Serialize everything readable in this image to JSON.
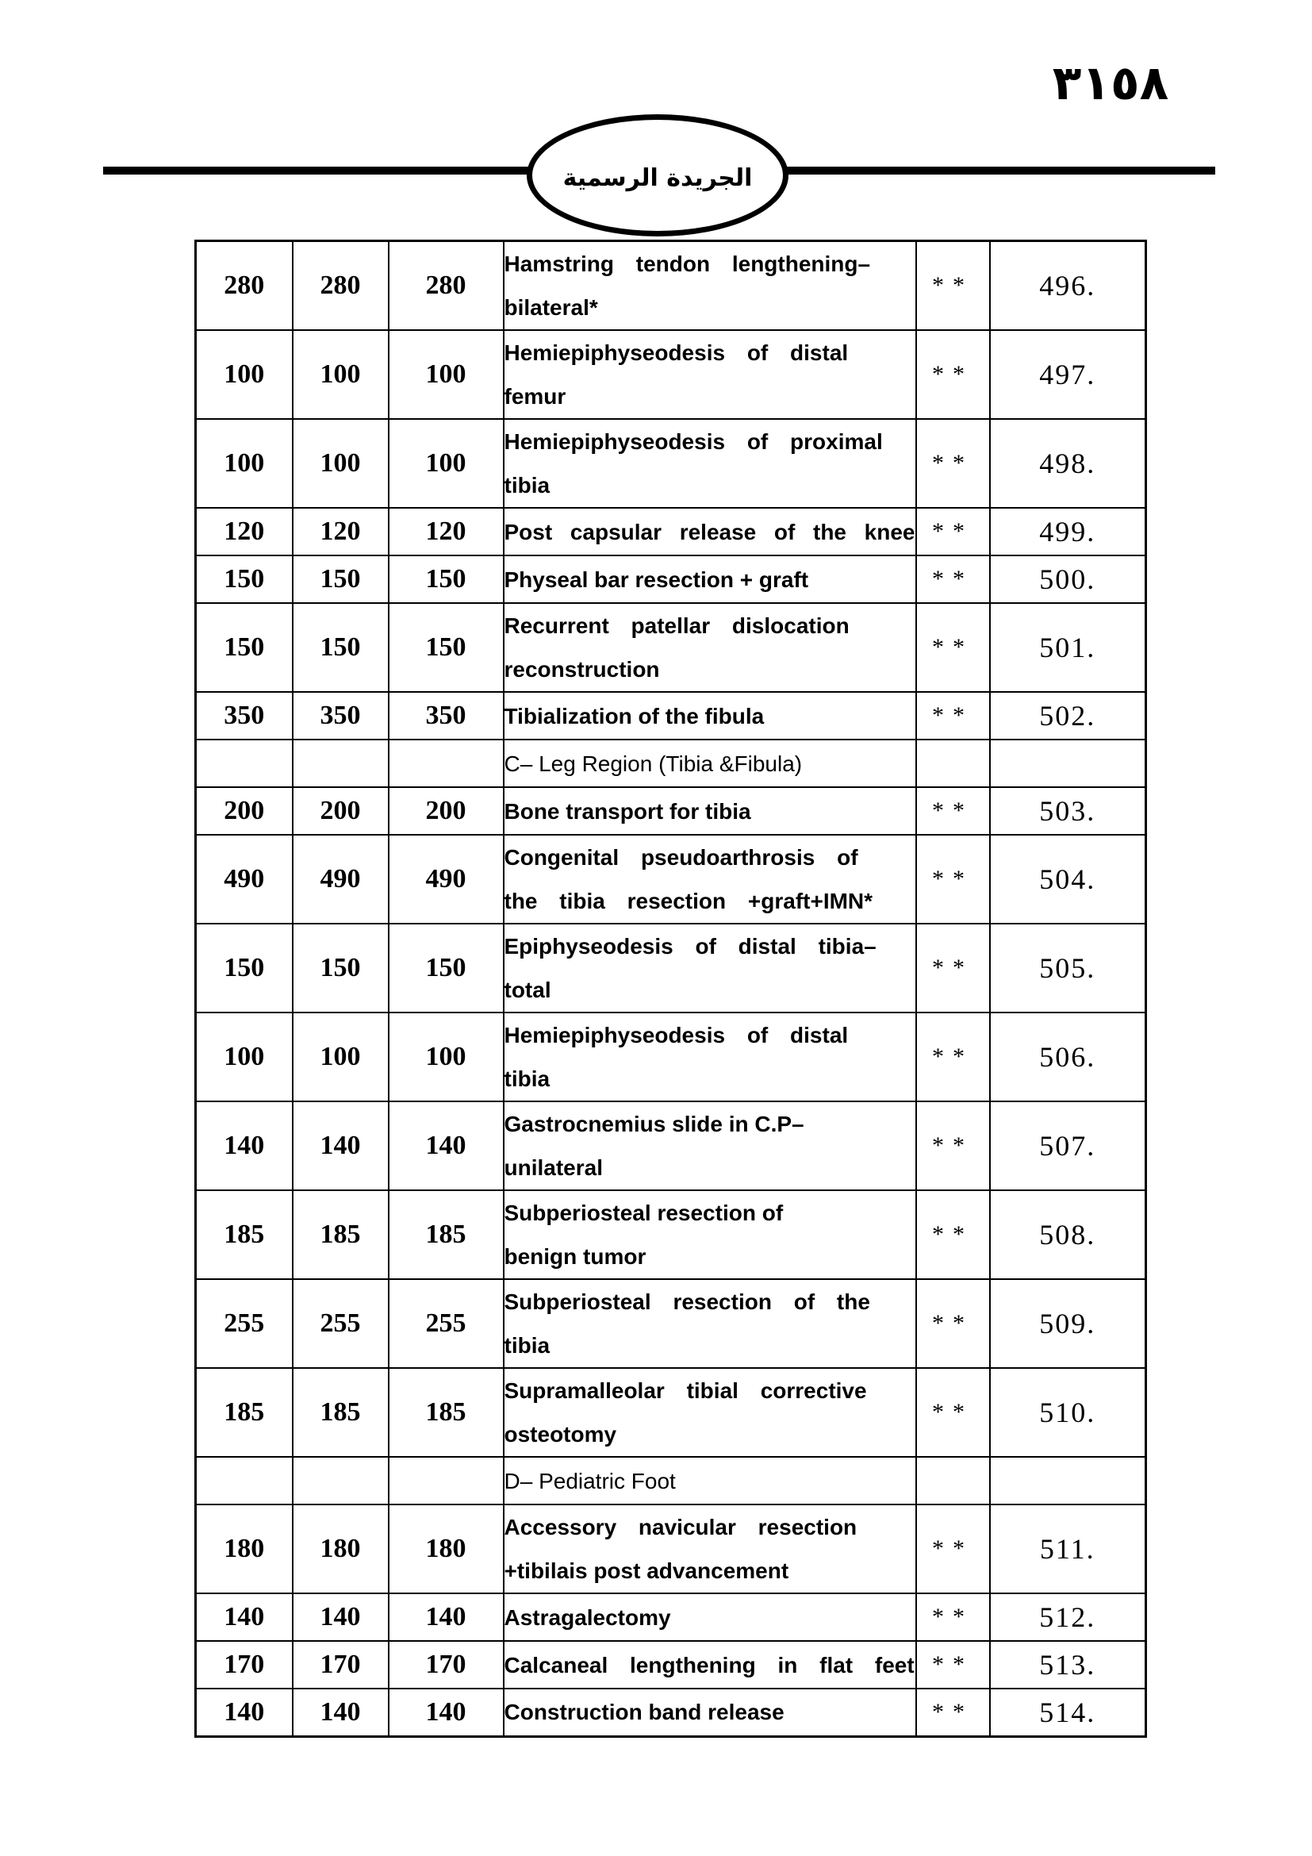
{
  "header": {
    "page_number": "٣١٥٨",
    "gazette_title": "الجريدة الرسمية"
  },
  "colors": {
    "ink": "#000000",
    "paper": "#ffffff"
  },
  "table": {
    "rows": [
      {
        "type": "item",
        "prices": [
          "280",
          "280",
          "280"
        ],
        "desc_lines": [
          "Hamstring tendon lengthening–",
          "bilateral*"
        ],
        "stars": "**",
        "ref": "496."
      },
      {
        "type": "item",
        "prices": [
          "100",
          "100",
          "100"
        ],
        "desc_lines": [
          "Hemiepiphyseodesis of distal",
          "femur"
        ],
        "stars": "**",
        "ref": "497."
      },
      {
        "type": "item",
        "prices": [
          "100",
          "100",
          "100"
        ],
        "desc_lines": [
          "Hemiepiphyseodesis of proximal",
          "tibia"
        ],
        "stars": "**",
        "ref": "498."
      },
      {
        "type": "item",
        "prices": [
          "120",
          "120",
          "120"
        ],
        "desc_lines": [
          "Post capsular release of the knee"
        ],
        "stars": "**",
        "ref": "499."
      },
      {
        "type": "item",
        "prices": [
          "150",
          "150",
          "150"
        ],
        "desc_lines": [
          "Physeal bar resection + graft"
        ],
        "stars": "**",
        "ref": "500."
      },
      {
        "type": "item",
        "prices": [
          "150",
          "150",
          "150"
        ],
        "desc_lines": [
          "Recurrent patellar dislocation",
          "reconstruction"
        ],
        "stars": "**",
        "ref": "501."
      },
      {
        "type": "item",
        "prices": [
          "350",
          "350",
          "350"
        ],
        "desc_lines": [
          "Tibialization of the fibula"
        ],
        "stars": "**",
        "ref": "502."
      },
      {
        "type": "section",
        "prices": [
          "",
          "",
          ""
        ],
        "desc_lines": [
          "C– Leg Region (Tibia &Fibula)"
        ],
        "stars": "",
        "ref": ""
      },
      {
        "type": "item",
        "prices": [
          "200",
          "200",
          "200"
        ],
        "desc_lines": [
          "Bone transport for tibia"
        ],
        "stars": "**",
        "ref": "503."
      },
      {
        "type": "item",
        "prices": [
          "490",
          "490",
          "490"
        ],
        "desc_lines": [
          "Congenital pseudoarthrosis of",
          "the tibia resection +graft+IMN*"
        ],
        "stars": "**",
        "ref": "504."
      },
      {
        "type": "item",
        "prices": [
          "150",
          "150",
          "150"
        ],
        "desc_lines": [
          "Epiphyseodesis of distal tibia–",
          "total"
        ],
        "stars": "**",
        "ref": "505."
      },
      {
        "type": "item",
        "prices": [
          "100",
          "100",
          "100"
        ],
        "desc_lines": [
          "Hemiepiphyseodesis of distal",
          "tibia"
        ],
        "stars": "**",
        "ref": "506."
      },
      {
        "type": "item",
        "prices": [
          "140",
          "140",
          "140"
        ],
        "desc_lines": [
          "Gastrocnemius slide in C.P–",
          "unilateral"
        ],
        "stars": "**",
        "ref": "507."
      },
      {
        "type": "item",
        "prices": [
          "185",
          "185",
          "185"
        ],
        "desc_lines": [
          "Subperiosteal resection of",
          "benign tumor"
        ],
        "stars": "**",
        "ref": "508."
      },
      {
        "type": "item",
        "prices": [
          "255",
          "255",
          "255"
        ],
        "desc_lines": [
          "Subperiosteal resection of the",
          "tibia"
        ],
        "stars": "**",
        "ref": "509."
      },
      {
        "type": "item",
        "prices": [
          "185",
          "185",
          "185"
        ],
        "desc_lines": [
          "Supramalleolar tibial corrective",
          "osteotomy"
        ],
        "stars": "**",
        "ref": "510."
      },
      {
        "type": "section",
        "prices": [
          "",
          "",
          ""
        ],
        "desc_lines": [
          "D– Pediatric Foot"
        ],
        "stars": "",
        "ref": ""
      },
      {
        "type": "item",
        "prices": [
          "180",
          "180",
          "180"
        ],
        "desc_lines": [
          "Accessory navicular resection",
          "+tibilais post advancement"
        ],
        "stars": "**",
        "ref": "511."
      },
      {
        "type": "item",
        "prices": [
          "140",
          "140",
          "140"
        ],
        "desc_lines": [
          "Astragalectomy"
        ],
        "stars": "**",
        "ref": "512."
      },
      {
        "type": "item",
        "prices": [
          "170",
          "170",
          "170"
        ],
        "desc_lines": [
          "Calcaneal lengthening in flat feet"
        ],
        "stars": "**",
        "ref": "513."
      },
      {
        "type": "item",
        "prices": [
          "140",
          "140",
          "140"
        ],
        "desc_lines": [
          "Construction band release"
        ],
        "stars": "**",
        "ref": "514."
      }
    ]
  }
}
